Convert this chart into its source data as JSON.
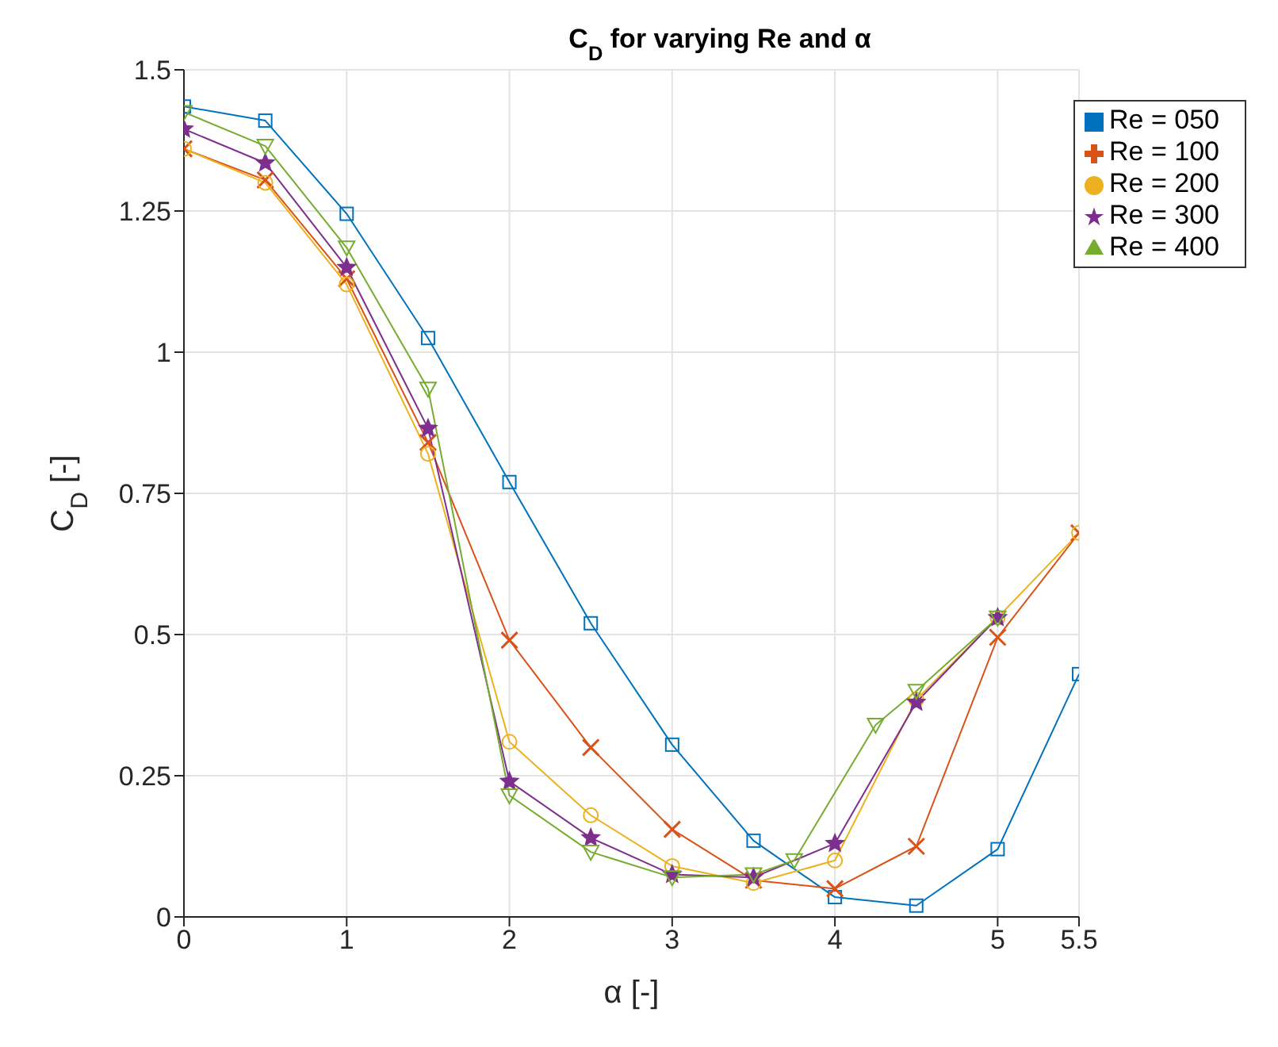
{
  "chart_data": {
    "type": "line",
    "title": "C$_{D}$ for varying Re and α",
    "xlabel": "α [-]",
    "ylabel": "C$_{D}$ [-]",
    "xlim": [
      0,
      5.5
    ],
    "xticks": [
      0,
      1,
      2,
      3,
      4,
      5,
      5.5
    ],
    "ylim": [
      0,
      1.5
    ],
    "yticks": [
      0,
      0.25,
      0.5,
      0.75,
      1,
      1.25,
      1.5
    ],
    "grid": true,
    "legend": "top right",
    "line_style": "solid",
    "series": [
      {
        "name": "Re = 050",
        "color": "#0072bd",
        "marker": "square",
        "x": [
          0,
          0.5,
          1,
          1.5,
          2,
          2.5,
          3,
          3.5,
          4,
          4.5,
          5,
          5.5
        ],
        "values": [
          1.435,
          1.41,
          1.245,
          1.025,
          0.77,
          0.52,
          0.305,
          0.135,
          0.035,
          0.02,
          0.12,
          0.43
        ]
      },
      {
        "name": "Re = 100",
        "color": "#d95319",
        "marker": "cross",
        "x": [
          0,
          0.5,
          1,
          1.5,
          2,
          2.5,
          3,
          3.5,
          4,
          4.5,
          5,
          5.5
        ],
        "values": [
          1.36,
          1.305,
          1.13,
          0.84,
          0.49,
          0.3,
          0.155,
          0.065,
          0.05,
          0.125,
          0.495,
          0.68
        ]
      },
      {
        "name": "Re = 200",
        "color": "#edb120",
        "marker": "circle",
        "x": [
          0,
          0.5,
          1,
          1.5,
          2,
          2.5,
          3,
          3.5,
          4,
          4.5,
          5,
          5.5
        ],
        "values": [
          1.36,
          1.3,
          1.12,
          0.82,
          0.31,
          0.18,
          0.09,
          0.06,
          0.1,
          0.385,
          0.53,
          0.68
        ]
      },
      {
        "name": "Re = 300",
        "color": "#7e2f8e",
        "marker": "star",
        "x": [
          0,
          0.5,
          1,
          1.5,
          2,
          2.5,
          3,
          3.5,
          4,
          4.5,
          5
        ],
        "values": [
          1.395,
          1.335,
          1.15,
          0.865,
          0.24,
          0.14,
          0.075,
          0.07,
          0.13,
          0.38,
          0.53
        ]
      },
      {
        "name": "Re = 400",
        "color": "#77ac30",
        "marker": "triangle",
        "x": [
          0,
          0.5,
          1,
          1.5,
          2,
          2.5,
          3,
          3.5,
          3.75,
          4.25,
          4.5,
          5
        ],
        "values": [
          1.425,
          1.365,
          1.185,
          0.935,
          0.215,
          0.115,
          0.07,
          0.075,
          0.1,
          0.34,
          0.4,
          0.53
        ]
      }
    ]
  }
}
